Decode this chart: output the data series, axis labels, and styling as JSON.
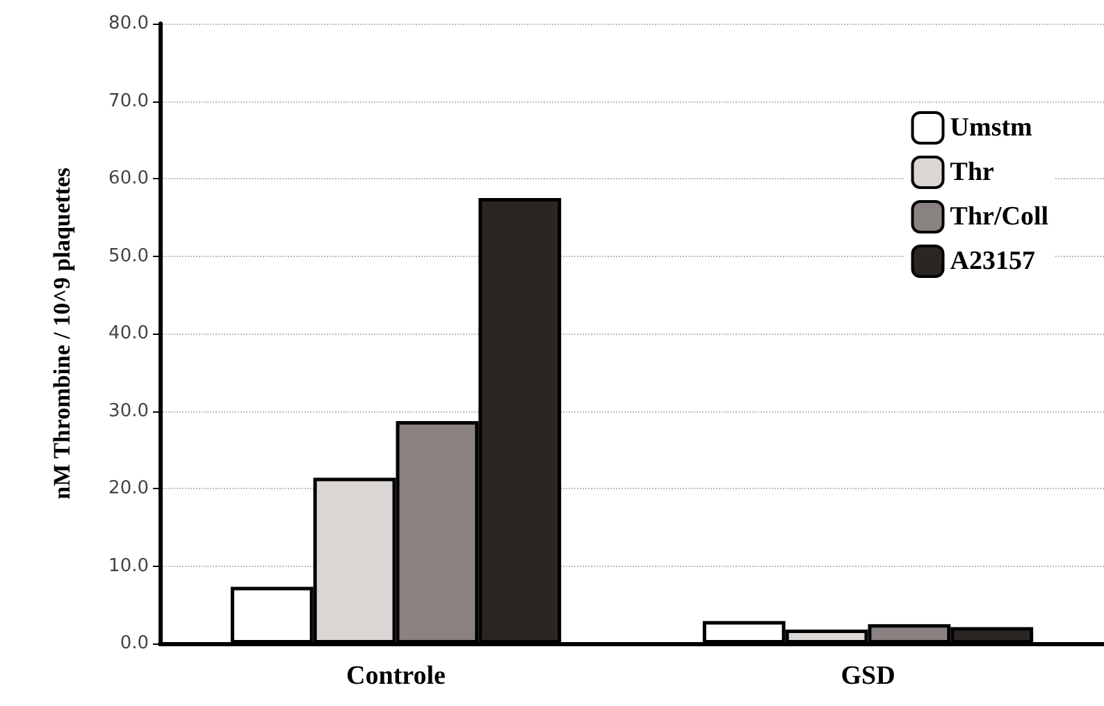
{
  "chart_data": {
    "type": "bar",
    "ylabel": "nM Thrombine / 10^9 plaquettes",
    "categories": [
      "Controle",
      "GSD"
    ],
    "series": [
      {
        "name": "Umstm",
        "color": "#ffffff",
        "values": [
          7.3,
          2.9
        ]
      },
      {
        "name": "Thr",
        "color": "#d9d6d4",
        "values": [
          21.4,
          1.8
        ]
      },
      {
        "name": "Thr/Coll",
        "color": "#8a8280",
        "values": [
          28.7,
          2.5
        ]
      },
      {
        "name": "A23157",
        "color": "#2b2624",
        "values": [
          57.5,
          2.1
        ]
      }
    ],
    "ylim": [
      0,
      80
    ],
    "yticks": [
      {
        "value": 0,
        "label": "0.0"
      },
      {
        "value": 10,
        "label": "10.0"
      },
      {
        "value": 20,
        "label": "20.0"
      },
      {
        "value": 30,
        "label": "30.0"
      },
      {
        "value": 40,
        "label": "40.0"
      },
      {
        "value": 50,
        "label": "50.0"
      },
      {
        "value": 60,
        "label": "60.0"
      },
      {
        "value": 70,
        "label": "70.0"
      },
      {
        "value": 80,
        "label": "80.0"
      }
    ],
    "grid": "y",
    "legend": "top right"
  }
}
